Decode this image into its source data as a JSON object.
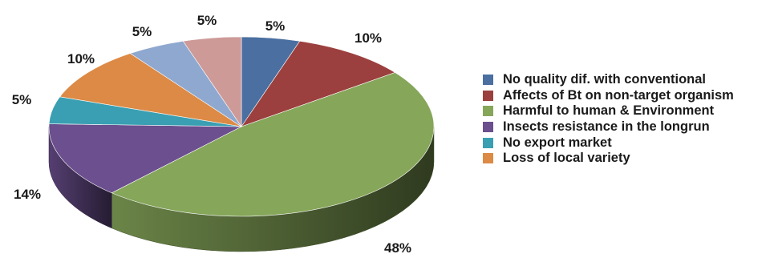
{
  "chart_data": {
    "type": "pie",
    "style": "3d",
    "title": "",
    "legend_position": "right",
    "slices": [
      {
        "name": "No quality dif. with conventional",
        "value": 5,
        "label": "5%",
        "color": "#4a6fa0"
      },
      {
        "name": "Affects of Bt on non-target organism",
        "value": 10,
        "label": "10%",
        "color": "#9b403e"
      },
      {
        "name": "Harmful to human & Environment",
        "value": 48,
        "label": "48%",
        "color": "#86a65a"
      },
      {
        "name": "Insects resistance in the longrun",
        "value": 14,
        "label": "14%",
        "color": "#6b4f8e"
      },
      {
        "name": "No export market",
        "value": 5,
        "label": "5%",
        "color": "#3a9fb2"
      },
      {
        "name": "Loss of local variety",
        "value": 10,
        "label": "10%",
        "color": "#dc8a45"
      },
      {
        "name": "",
        "value": 5,
        "label": "5%",
        "color": "#8fa8cf"
      },
      {
        "name": "",
        "value": 5,
        "label": "5%",
        "color": "#cd9a98"
      }
    ],
    "legend": [
      {
        "label": "No quality dif. with conventional",
        "color": "#4a6fa0"
      },
      {
        "label": "Affects of Bt on non-target organism",
        "color": "#9b403e"
      },
      {
        "label": "Harmful to human & Environment",
        "color": "#86a65a"
      },
      {
        "label": "Insects resistance in the longrun",
        "color": "#6b4f8e"
      },
      {
        "label": "No export market",
        "color": "#3a9fb2"
      },
      {
        "label": "Loss of local variety",
        "color": "#dc8a45"
      }
    ]
  }
}
